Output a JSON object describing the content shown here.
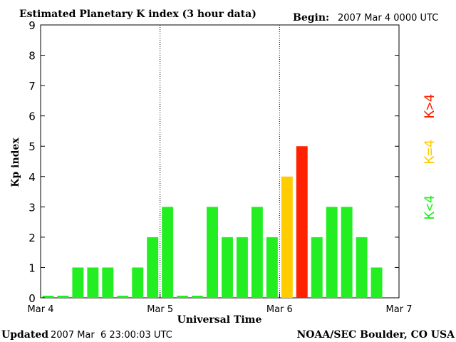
{
  "chart_data": {
    "type": "bar",
    "title": "Estimated Planetary K index (3 hour data)",
    "begin_label": "Begin:",
    "begin_value": "2007 Mar 4 0000 UTC",
    "ylabel": "Kp index",
    "xlabel": "Universal Time",
    "ylim": [
      0,
      9
    ],
    "yticks": [
      "0",
      "1",
      "2",
      "3",
      "4",
      "5",
      "6",
      "7",
      "8",
      "9"
    ],
    "xticks": [
      "Mar 4",
      "Mar 5",
      "Mar 6",
      "Mar 7"
    ],
    "day_separators": [
      1,
      2
    ],
    "values": [
      0,
      0,
      1,
      1,
      1,
      0,
      1,
      2,
      3,
      0,
      0,
      3,
      2,
      2,
      3,
      2,
      4,
      5,
      2,
      3,
      3,
      2,
      1
    ],
    "legend": [
      {
        "label": "K<4",
        "color": "#22ee22"
      },
      {
        "label": "K=4",
        "color": "#ffcc00"
      },
      {
        "label": "K>4",
        "color": "#ff2200"
      }
    ],
    "colors": {
      "low": "#22ee22",
      "equal": "#ffcc00",
      "high": "#ff2200"
    },
    "grid": false
  },
  "footer": {
    "updated_label": "Updated",
    "updated_value": "2007 Mar  6 23:00:03 UTC",
    "source": "NOAA/SEC Boulder, CO USA"
  }
}
